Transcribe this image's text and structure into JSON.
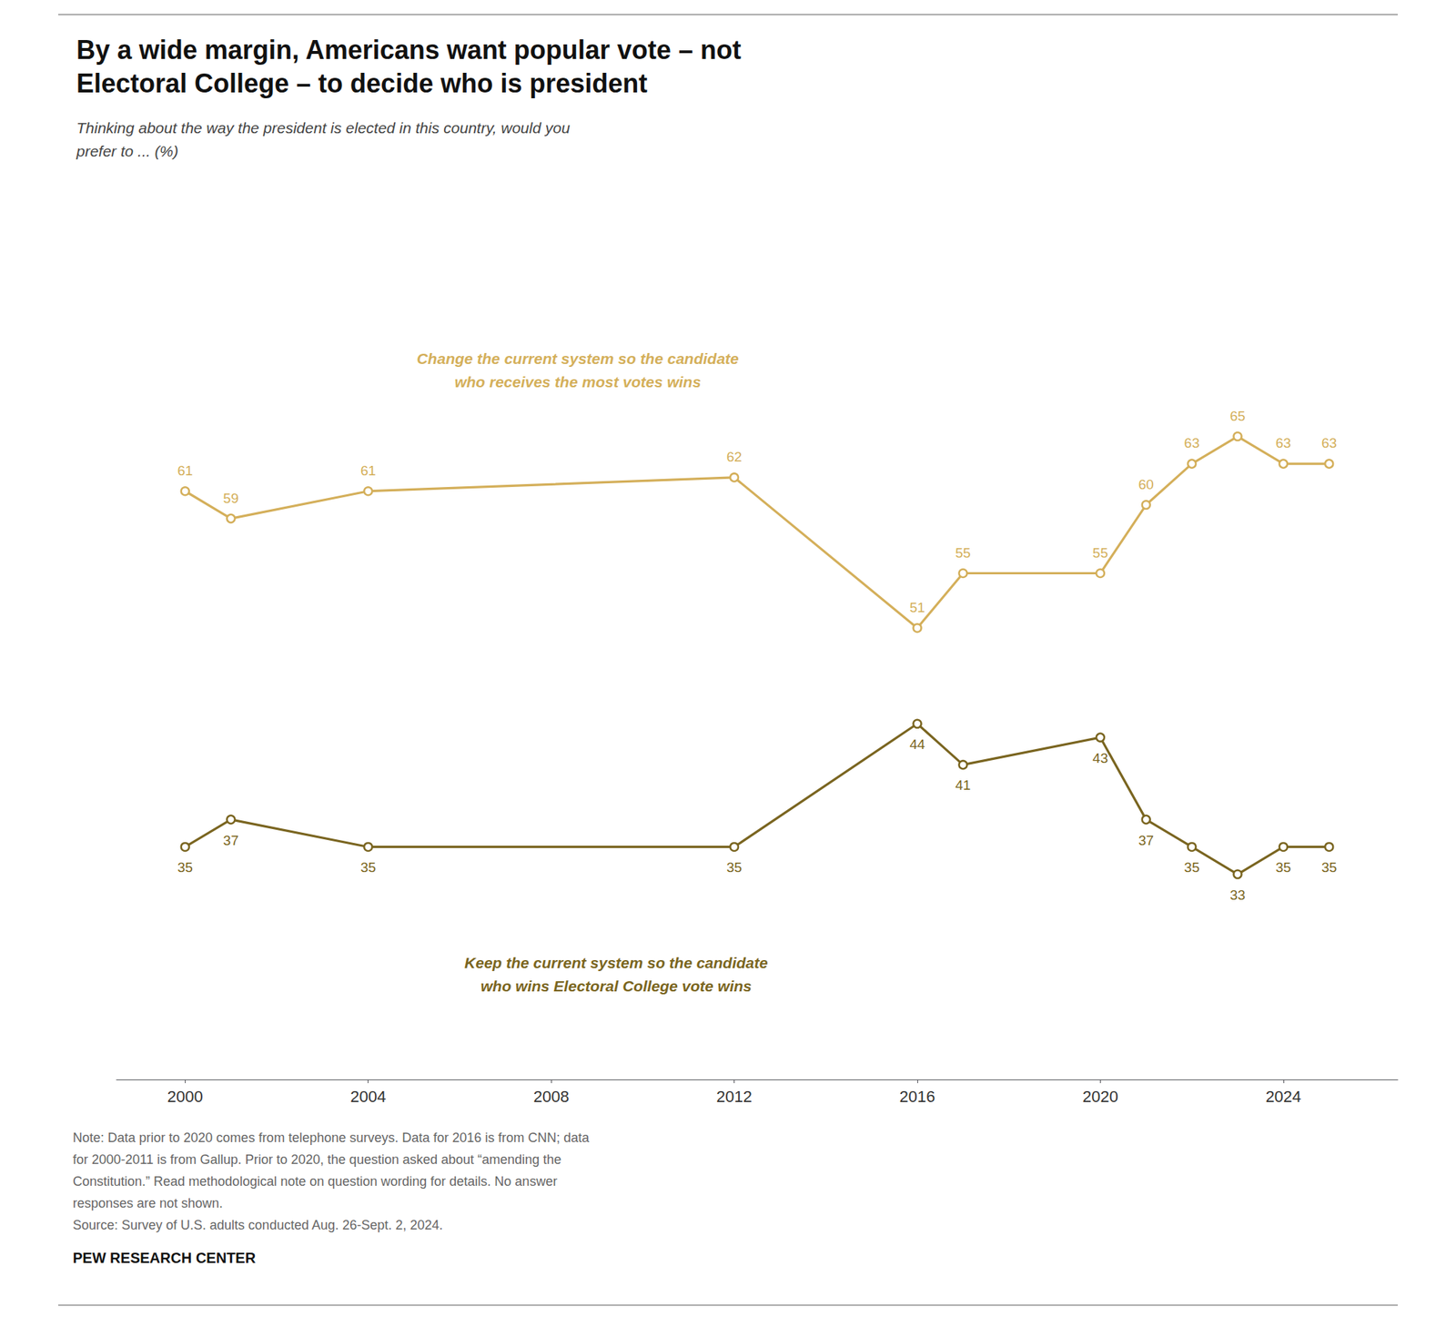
{
  "chart_data": {
    "type": "line",
    "title": "By a wide margin, Americans want popular vote – not\nElectoral College – to decide who is president",
    "subtitle": "Thinking about the way the president is elected in this country, would you\nprefer to ... (%)",
    "x": [
      2000,
      2001,
      2004,
      2012,
      2016,
      2017,
      2020,
      2021,
      2022,
      2023,
      2024,
      2025
    ],
    "series": [
      {
        "name": "Change the current system so the candidate\nwho receives the most votes wins",
        "color": "#D4AF5A",
        "values": [
          61,
          59,
          61,
          62,
          51,
          55,
          55,
          60,
          63,
          65,
          63,
          63
        ]
      },
      {
        "name": "Keep the current system so the candidate\nwho wins Electoral College vote wins",
        "color": "#7A6520",
        "values": [
          35,
          37,
          35,
          35,
          44,
          41,
          43,
          37,
          35,
          33,
          35,
          35
        ]
      }
    ],
    "xlim": [
      1998.5,
      2026.5
    ],
    "xticks": [
      2000,
      2004,
      2008,
      2012,
      2016,
      2020,
      2024
    ],
    "ylim": [
      18,
      82
    ],
    "tick_labels": "x",
    "grid": false,
    "data_labels": true,
    "marker": "circle",
    "notes": [
      "Note: Data prior to 2020 comes from telephone surveys. Data for 2016 is from CNN; data",
      "for 2000-2011 is from Gallup. Prior to 2020, the question asked about “amending the",
      "Constitution.” Read methodological note on question wording for details. No answer",
      "responses are not shown.",
      "Source: Survey of U.S. adults conducted Aug. 26-Sept. 2, 2024."
    ],
    "source": "PEW RESEARCH CENTER"
  }
}
